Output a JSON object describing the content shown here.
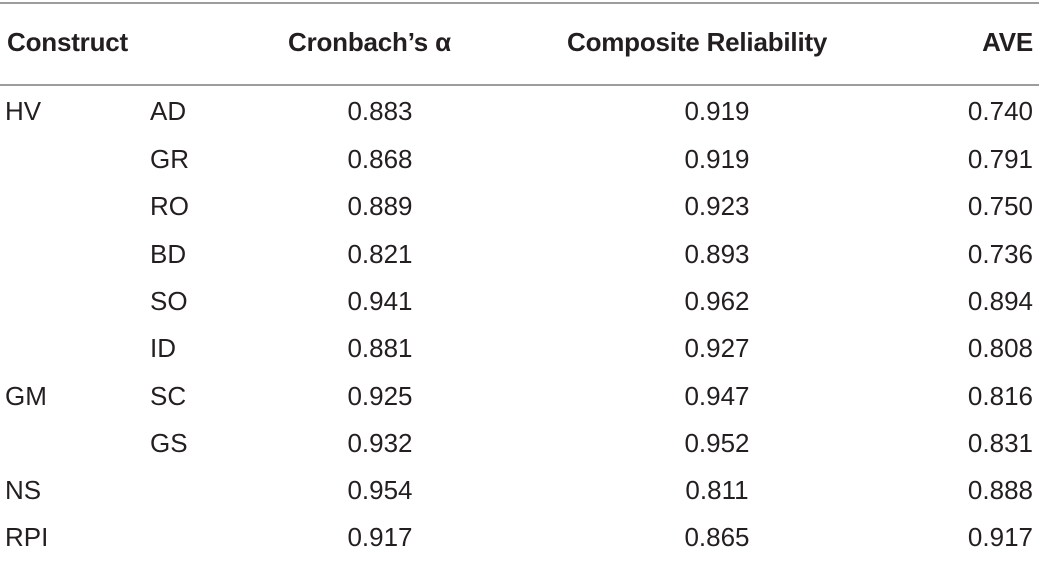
{
  "table": {
    "headers": {
      "construct": "Construct",
      "alpha": "Cronbach’s α",
      "composite_reliability": "Composite Reliability",
      "ave": "AVE"
    },
    "rows": [
      {
        "construct": "HV",
        "sub": "AD",
        "alpha": "0.883",
        "cr": "0.919",
        "ave": "0.740"
      },
      {
        "construct": "",
        "sub": "GR",
        "alpha": "0.868",
        "cr": "0.919",
        "ave": "0.791"
      },
      {
        "construct": "",
        "sub": "RO",
        "alpha": "0.889",
        "cr": "0.923",
        "ave": "0.750"
      },
      {
        "construct": "",
        "sub": "BD",
        "alpha": "0.821",
        "cr": "0.893",
        "ave": "0.736"
      },
      {
        "construct": "",
        "sub": "SO",
        "alpha": "0.941",
        "cr": "0.962",
        "ave": "0.894"
      },
      {
        "construct": "",
        "sub": "ID",
        "alpha": "0.881",
        "cr": "0.927",
        "ave": "0.808"
      },
      {
        "construct": "GM",
        "sub": "SC",
        "alpha": "0.925",
        "cr": "0.947",
        "ave": "0.816"
      },
      {
        "construct": "",
        "sub": "GS",
        "alpha": "0.932",
        "cr": "0.952",
        "ave": "0.831"
      },
      {
        "construct": "NS",
        "sub": "",
        "alpha": "0.954",
        "cr": "0.811",
        "ave": "0.888"
      },
      {
        "construct": "RPI",
        "sub": "",
        "alpha": "0.917",
        "cr": "0.865",
        "ave": "0.917"
      }
    ]
  }
}
